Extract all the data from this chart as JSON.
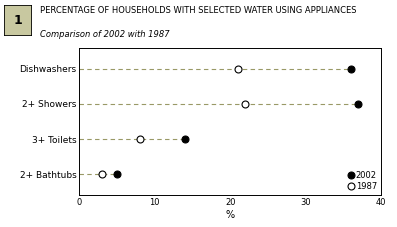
{
  "title_line1": "PERCENTAGE OF HOUSEHOLDS WITH SELECTED WATER USING APPLIANCES",
  "title_line2": "Comparison of 2002 with 1987",
  "categories": [
    "Dishwashers",
    "2+ Showers",
    "3+ Toilets",
    "2+ Bathtubs"
  ],
  "values_2002": [
    36,
    37,
    14,
    5
  ],
  "values_1987": [
    21,
    22,
    8,
    3
  ],
  "xlabel": "%",
  "xlim": [
    0,
    40
  ],
  "xticks": [
    0,
    10,
    20,
    30,
    40
  ],
  "legend_2002": "2002",
  "legend_1987": "1987",
  "dot_color_2002": "#000000",
  "dot_color_1987": "#ffffff",
  "dot_edge_color": "#000000",
  "line_color": "#999966",
  "bg_color": "#ffffff",
  "box_fill": "#c8c8a0",
  "box_number": "1",
  "title1_fontsize": 6.0,
  "title2_fontsize": 6.0,
  "ylabel_fontsize": 6.5,
  "xlabel_fontsize": 7.0,
  "tick_fontsize": 6.0,
  "legend_fontsize": 6.0,
  "dot_size_2002": 5,
  "dot_size_1987": 5
}
